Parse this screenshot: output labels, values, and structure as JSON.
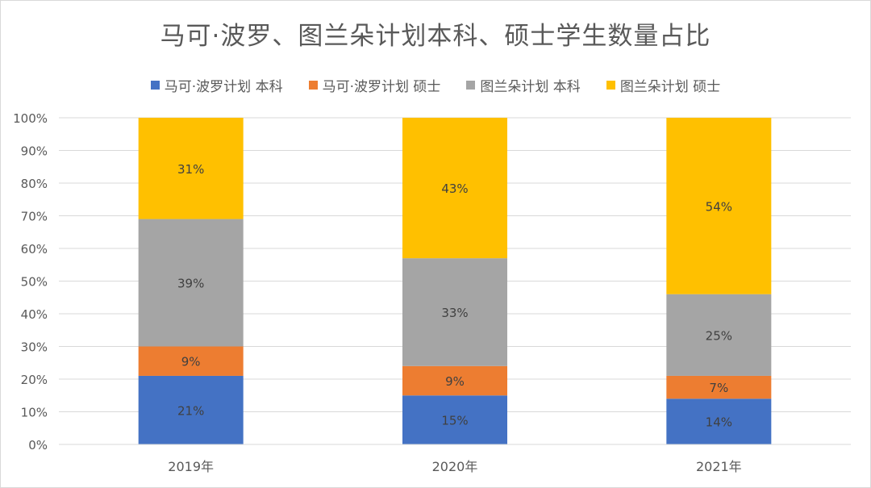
{
  "chart_data": {
    "type": "bar",
    "stacked": true,
    "percent_stacked": true,
    "title": "马可·波罗、图兰朵计划本科、硕士学生数量占比",
    "categories": [
      "2019年",
      "2020年",
      "2021年"
    ],
    "series": [
      {
        "name": "马可·波罗计划 本科",
        "color": "#4472c4",
        "values": [
          21,
          15,
          14
        ],
        "labels": [
          "21%",
          "15%",
          "14%"
        ]
      },
      {
        "name": "马可·波罗计划 硕士",
        "color": "#ed7d31",
        "values": [
          9,
          9,
          7
        ],
        "labels": [
          "9%",
          "9%",
          "7%"
        ]
      },
      {
        "name": "图兰朵计划 本科",
        "color": "#a5a5a5",
        "values": [
          39,
          33,
          25
        ],
        "labels": [
          "39%",
          "33%",
          "25%"
        ]
      },
      {
        "name": "图兰朵计划 硕士",
        "color": "#ffc000",
        "values": [
          31,
          43,
          54
        ],
        "labels": [
          "31%",
          "43%",
          "54%"
        ]
      }
    ],
    "y_ticks": [
      "0%",
      "10%",
      "20%",
      "30%",
      "40%",
      "50%",
      "60%",
      "70%",
      "80%",
      "90%",
      "100%"
    ],
    "ylim": [
      0,
      100
    ],
    "grid": true,
    "legend_position": "top",
    "xlabel": "",
    "ylabel": ""
  }
}
